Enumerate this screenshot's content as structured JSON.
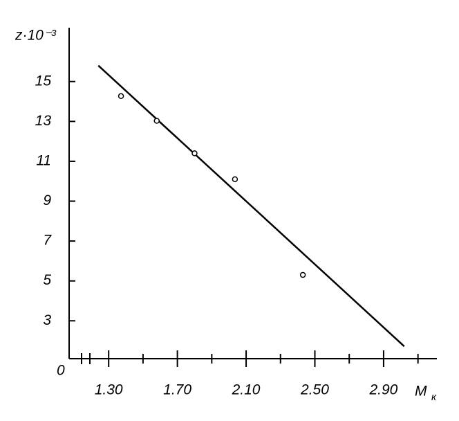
{
  "chart_data": {
    "type": "scatter",
    "y_label": "z·10⁻³",
    "x_label": "M",
    "x_label_sub": "к",
    "origin_label": "0",
    "xlim": [
      1.07,
      3.21
    ],
    "ylim": [
      1.1,
      17.7
    ],
    "xticks": [
      {
        "value": 1.3,
        "label": "1.30"
      },
      {
        "value": 1.7,
        "label": "1.70"
      },
      {
        "value": 2.1,
        "label": "2.10"
      },
      {
        "value": 2.5,
        "label": "2.50"
      },
      {
        "value": 2.9,
        "label": "2.90"
      }
    ],
    "xminorticks": [
      1.5,
      1.9,
      2.3,
      2.7,
      3.1
    ],
    "yticks": [
      3,
      5,
      7,
      9,
      11,
      13,
      15
    ],
    "color": "#000000",
    "points": {
      "x": [
        1.372,
        1.58,
        1.8,
        2.035,
        2.43
      ],
      "y": [
        14.27,
        13.03,
        11.4,
        10.1,
        5.3
      ]
    },
    "fit_line": {
      "x": [
        1.24,
        3.02
      ],
      "y": [
        15.8,
        1.72
      ]
    }
  }
}
